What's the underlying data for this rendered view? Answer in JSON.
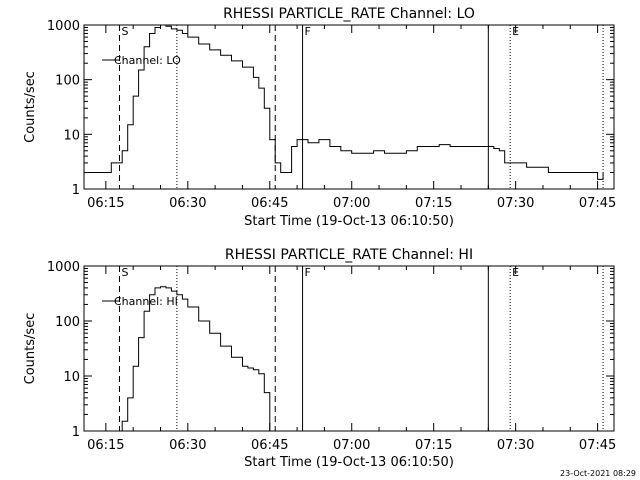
{
  "footer": {
    "timestamp": "23-Oct-2021 08:29"
  },
  "chart_data": [
    {
      "type": "line",
      "title": "RHESSI PARTICLE_RATE Channel: LO",
      "xlabel": "Start Time (19-Oct-13 06:10:50)",
      "ylabel": "Counts/sec",
      "yscale": "log",
      "ylim": [
        1,
        1000
      ],
      "xlim": [
        "06:11",
        "07:48"
      ],
      "xticks": [
        "06:15",
        "06:30",
        "06:45",
        "07:00",
        "07:15",
        "07:30",
        "07:45"
      ],
      "yticks": [
        "1",
        "10",
        "100",
        "1000"
      ],
      "legend": {
        "label": "Channel: LO",
        "position": "upper-left"
      },
      "markers": [
        {
          "time": "06:17:30",
          "label": "S",
          "style": "dashed"
        },
        {
          "time": "06:28",
          "label": "",
          "style": "dotted"
        },
        {
          "time": "06:46",
          "label": "",
          "style": "dashed"
        },
        {
          "time": "06:51",
          "label": "F",
          "style": "solid"
        },
        {
          "time": "07:25",
          "label": "",
          "style": "solid"
        },
        {
          "time": "07:29",
          "label": "E",
          "style": "dotted"
        },
        {
          "time": "07:46",
          "label": "",
          "style": "dotted"
        }
      ],
      "series": [
        {
          "name": "Channel: LO",
          "x": [
            "06:11",
            "06:13",
            "06:15",
            "06:16",
            "06:17",
            "06:18",
            "06:19",
            "06:20",
            "06:21",
            "06:22",
            "06:23",
            "06:24",
            "06:25",
            "06:26",
            "06:27",
            "06:28",
            "06:29",
            "06:30",
            "06:32",
            "06:34",
            "06:36",
            "06:38",
            "06:40",
            "06:42",
            "06:43",
            "06:44",
            "06:45",
            "06:46",
            "06:47",
            "06:48",
            "06:49",
            "06:50",
            "06:52",
            "06:54",
            "06:56",
            "06:58",
            "07:00",
            "07:02",
            "07:04",
            "07:06",
            "07:08",
            "07:10",
            "07:12",
            "07:14",
            "07:16",
            "07:18",
            "07:20",
            "07:22",
            "07:24",
            "07:25",
            "07:26",
            "07:27",
            "07:28",
            "07:30",
            "07:32",
            "07:34",
            "07:36",
            "07:38",
            "07:40",
            "07:42",
            "07:44",
            "07:45",
            "07:46"
          ],
          "y": [
            2,
            2,
            2,
            3,
            3,
            5,
            15,
            50,
            150,
            400,
            700,
            900,
            1000,
            950,
            850,
            800,
            700,
            600,
            450,
            350,
            280,
            220,
            170,
            110,
            70,
            30,
            8,
            3,
            2,
            2,
            6,
            8,
            7,
            8,
            6,
            5,
            4.5,
            4.5,
            5,
            4.5,
            4.5,
            5,
            6,
            6,
            6.5,
            6,
            6,
            6,
            6,
            6,
            5.5,
            5,
            3,
            3,
            2.5,
            2.5,
            2,
            2,
            2,
            2,
            2,
            1.5,
            2
          ]
        }
      ]
    },
    {
      "type": "line",
      "title": "RHESSI PARTICLE_RATE Channel: HI",
      "xlabel": "Start Time (19-Oct-13 06:10:50)",
      "ylabel": "Counts/sec",
      "yscale": "log",
      "ylim": [
        1,
        1000
      ],
      "xlim": [
        "06:11",
        "07:48"
      ],
      "xticks": [
        "06:15",
        "06:30",
        "06:45",
        "07:00",
        "07:15",
        "07:30",
        "07:45"
      ],
      "yticks": [
        "1",
        "10",
        "100",
        "1000"
      ],
      "legend": {
        "label": "Channel: HI",
        "position": "upper-left"
      },
      "markers": [
        {
          "time": "06:17:30",
          "label": "S",
          "style": "dashed"
        },
        {
          "time": "06:28",
          "label": "",
          "style": "dotted"
        },
        {
          "time": "06:46",
          "label": "",
          "style": "dashed"
        },
        {
          "time": "06:51",
          "label": "F",
          "style": "solid"
        },
        {
          "time": "07:25",
          "label": "",
          "style": "solid"
        },
        {
          "time": "07:29",
          "label": "E",
          "style": "dotted"
        },
        {
          "time": "07:46",
          "label": "",
          "style": "dotted"
        }
      ],
      "series": [
        {
          "name": "Channel: HI",
          "x": [
            "06:17",
            "06:18",
            "06:19",
            "06:20",
            "06:21",
            "06:22",
            "06:23",
            "06:24",
            "06:25",
            "06:26",
            "06:27",
            "06:28",
            "06:29",
            "06:30",
            "06:32",
            "06:34",
            "06:36",
            "06:38",
            "06:40",
            "06:41",
            "06:42",
            "06:43",
            "06:44",
            "06:45"
          ],
          "y": [
            1,
            1.5,
            4,
            15,
            50,
            150,
            300,
            400,
            420,
            400,
            350,
            300,
            250,
            180,
            100,
            60,
            35,
            22,
            15,
            14,
            13,
            11,
            5,
            1
          ]
        }
      ]
    }
  ]
}
